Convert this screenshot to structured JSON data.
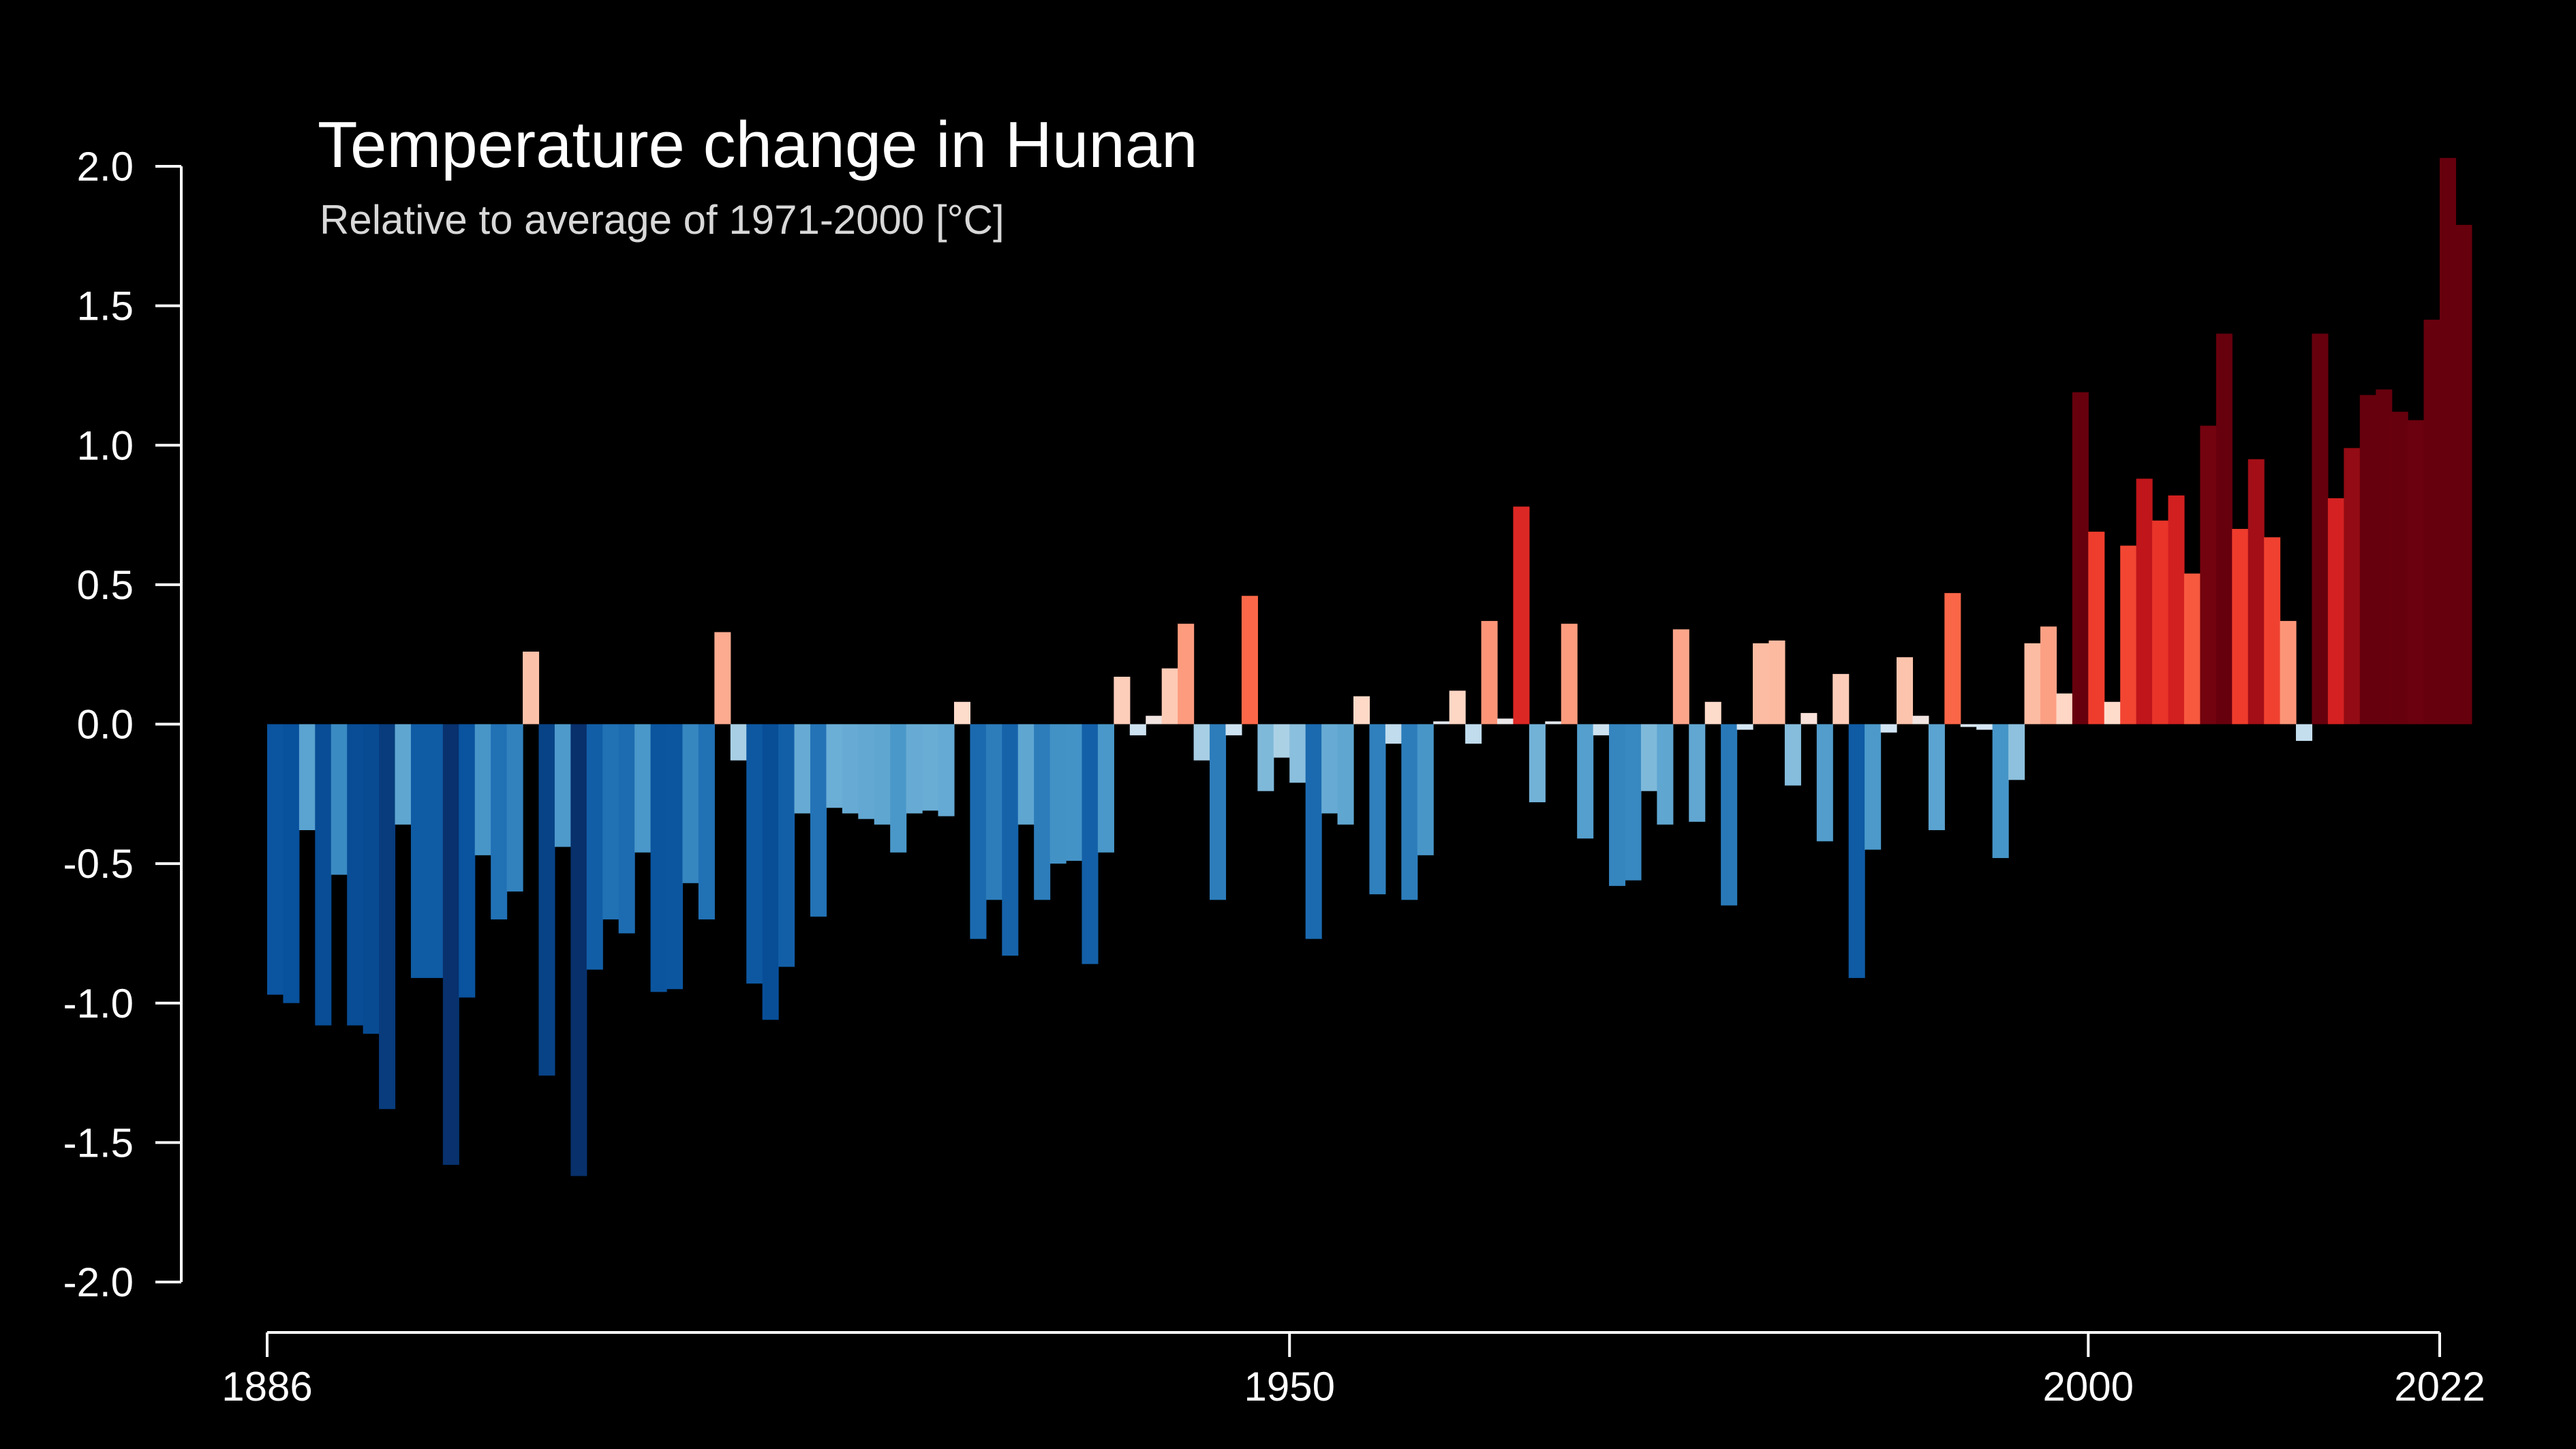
{
  "chart_data": {
    "type": "bar",
    "title": "Temperature change in Hunan",
    "subtitle": "Relative to average of 1971-2000  [°C]",
    "xlabel": "",
    "ylabel": "",
    "x_start": 1886,
    "x_end": 2022,
    "ylim": [
      -2.0,
      2.0
    ],
    "y_ticks": [
      "2.0",
      "1.5",
      "1.0",
      "0.5",
      "0.0",
      "-0.5",
      "-1.0",
      "-1.5",
      "-2.0"
    ],
    "x_ticks": [
      "1886",
      "1950",
      "2000",
      "2022"
    ],
    "grid": false,
    "legend": "none",
    "color_scale": "warming-stripes (blue negative, red positive)",
    "values": [
      -0.97,
      -1.0,
      -0.38,
      -1.08,
      -0.54,
      -1.08,
      -1.11,
      -1.38,
      -0.36,
      -0.91,
      -0.91,
      -1.58,
      -0.98,
      -0.47,
      -0.7,
      -0.6,
      0.26,
      -1.26,
      -0.44,
      -1.62,
      -0.88,
      -0.7,
      -0.75,
      -0.46,
      -0.96,
      -0.95,
      -0.57,
      -0.7,
      0.33,
      -0.13,
      -0.93,
      -1.06,
      -0.87,
      -0.32,
      -0.69,
      -0.3,
      -0.32,
      -0.34,
      -0.36,
      -0.46,
      -0.32,
      -0.31,
      -0.33,
      0.08,
      -0.77,
      -0.63,
      -0.83,
      -0.36,
      -0.63,
      -0.5,
      -0.49,
      -0.86,
      -0.46,
      0.17,
      -0.04,
      0.03,
      0.2,
      0.36,
      -0.13,
      -0.63,
      -0.04,
      0.46,
      -0.24,
      -0.12,
      -0.21,
      -0.77,
      -0.32,
      -0.36,
      0.1,
      -0.61,
      -0.07,
      -0.63,
      -0.47,
      0.01,
      0.12,
      -0.07,
      0.37,
      0.02,
      0.78,
      -0.28,
      0.01,
      0.36,
      -0.41,
      -0.04,
      -0.58,
      -0.56,
      -0.24,
      -0.36,
      0.34,
      -0.35,
      0.08,
      -0.65,
      -0.02,
      0.29,
      0.3,
      -0.22,
      0.04,
      -0.42,
      0.18,
      -0.91,
      -0.45,
      -0.03,
      0.24,
      0.03,
      -0.38,
      0.47,
      -0.01,
      -0.02,
      -0.48,
      -0.2,
      0.29,
      0.35,
      0.11,
      1.19,
      0.69,
      0.08,
      0.64,
      0.88,
      0.73,
      0.82,
      0.54,
      1.07,
      1.4,
      0.7,
      0.95,
      0.67,
      0.37,
      -0.06,
      1.4,
      0.81,
      0.99,
      1.18,
      1.2,
      1.12,
      1.09,
      1.45,
      2.03,
      1.79
    ]
  }
}
